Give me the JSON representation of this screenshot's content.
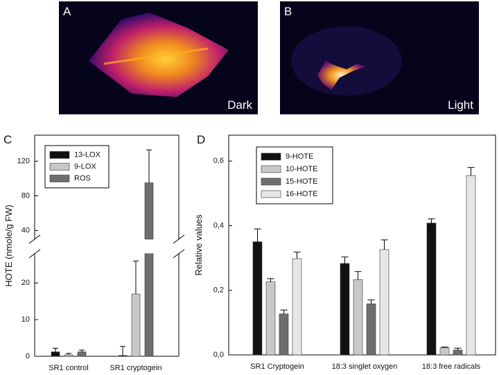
{
  "panels": [
    {
      "label": "A",
      "caption": "Dark"
    },
    {
      "label": "B",
      "caption": "Light"
    }
  ],
  "chart_data": [
    {
      "type": "bar",
      "panel_label": "C",
      "y_label": "HOTE (nmole/g FW)",
      "categories": [
        "SR1 control",
        "SR1 cryptogein"
      ],
      "series": [
        {
          "name": "13-LOX",
          "color": "#111111",
          "values": [
            1.2,
            0.2
          ],
          "errors": [
            1.0,
            2.5
          ]
        },
        {
          "name": "9-LOX",
          "color": "#c8c8c8",
          "values": [
            0.4,
            17
          ],
          "errors": [
            0.4,
            9
          ]
        },
        {
          "name": "ROS",
          "color": "#6e6e6e",
          "values": [
            1.2,
            95
          ],
          "errors": [
            0.5,
            38
          ]
        }
      ],
      "ylim_segments": [
        [
          0,
          28
        ],
        [
          30,
          150
        ]
      ],
      "yticks": [
        0,
        10,
        20,
        40,
        80,
        120
      ]
    },
    {
      "type": "bar",
      "panel_label": "D",
      "y_label": "Relative values",
      "categories": [
        "SR1 Cryptogein",
        "18:3 singlet oxygen",
        "18:3 free radicals"
      ],
      "series": [
        {
          "name": "9-HOTE",
          "color": "#111111",
          "values": [
            0.35,
            0.283,
            0.408
          ],
          "errors": [
            0.04,
            0.02,
            0.013
          ]
        },
        {
          "name": "10-HOTE",
          "color": "#c8c8c8",
          "values": [
            0.226,
            0.233,
            0.022
          ],
          "errors": [
            0.01,
            0.025,
            0.002
          ]
        },
        {
          "name": "15-HOTE",
          "color": "#6e6e6e",
          "values": [
            0.127,
            0.158,
            0.015
          ],
          "errors": [
            0.012,
            0.012,
            0.006
          ]
        },
        {
          "name": "16-HOTE",
          "color": "#e6e6e6",
          "values": [
            0.298,
            0.326,
            0.555
          ],
          "errors": [
            0.02,
            0.03,
            0.025
          ]
        }
      ],
      "ylim": [
        0,
        0.68
      ],
      "yticks": [
        {
          "value": 0,
          "label": "0,0"
        },
        {
          "value": 0.2,
          "label": "0,2"
        },
        {
          "value": 0.4,
          "label": "0,4"
        },
        {
          "value": 0.6,
          "label": "0,6"
        }
      ]
    }
  ]
}
